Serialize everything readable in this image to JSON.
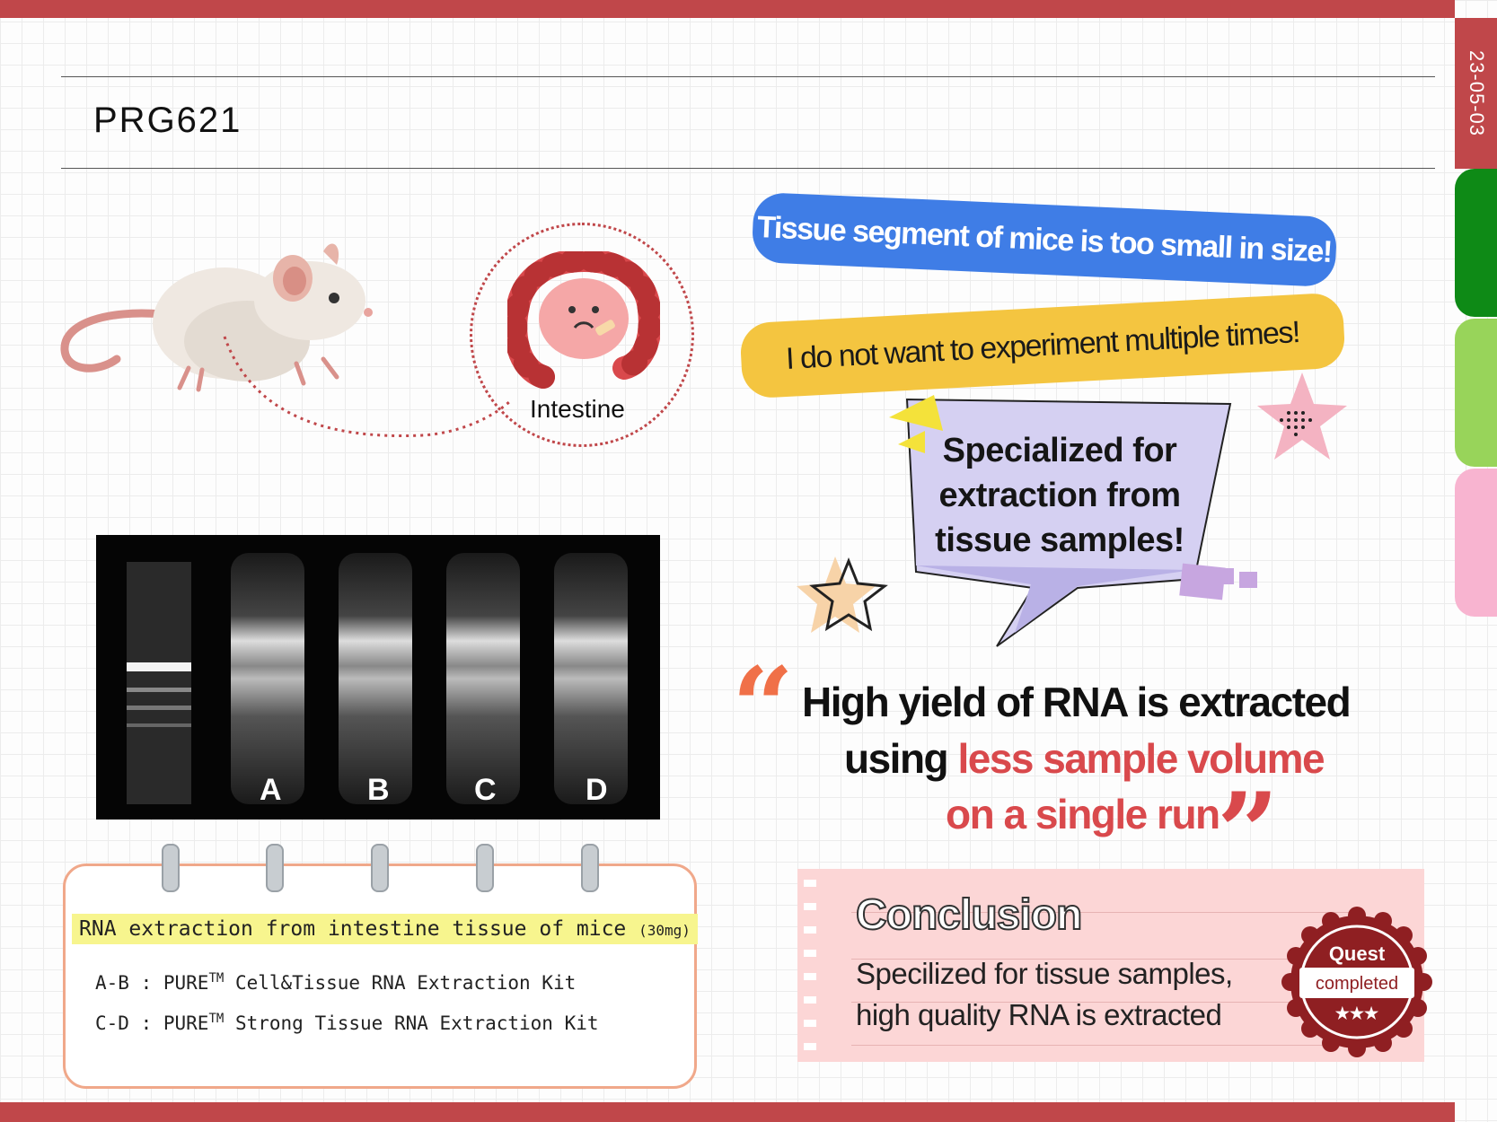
{
  "header": {
    "title": "PRG621"
  },
  "side_tabs": {
    "date": "23-05-03",
    "colors": [
      "#c0474a",
      "#0e8a16",
      "#98d45a",
      "#f8b4d0"
    ]
  },
  "diagram": {
    "organ_label": "Intestine"
  },
  "bubbles": {
    "blue": "Tissue segment of mice is too small in size!",
    "yellow": "I do not want to experiment multiple times!"
  },
  "speech_box": {
    "lines": [
      "Specialized for",
      "extraction from",
      "tissue samples!"
    ]
  },
  "quote": {
    "line1": "High yield of RNA is extracted",
    "line2_plain": "using ",
    "line2_highlight": "less sample volume",
    "line3": "on a single run"
  },
  "gel": {
    "lanes": [
      "A",
      "B",
      "C",
      "D"
    ]
  },
  "note": {
    "heading": "RNA extraction from intestine tissue of mice",
    "heading_small": "(30mg)",
    "items": [
      {
        "prefix": "A-B : PURE",
        "tm": "TM",
        "text": " Cell&Tissue RNA Extraction Kit"
      },
      {
        "prefix": "C-D : PURE",
        "tm": "TM",
        "text": " Strong Tissue RNA Extraction Kit"
      }
    ]
  },
  "conclusion": {
    "heading": "Conclusion",
    "line1": "Specilized for tissue samples,",
    "line2": "high quality RNA is extracted"
  },
  "seal": {
    "line1": "Quest",
    "line2": "completed",
    "stars": "★★★"
  },
  "colors": {
    "accent_red": "#c0474a",
    "blue": "#3f7de6",
    "yellow": "#f4c540",
    "lavender": "#d5d0f2",
    "highlight": "#f7f58e"
  }
}
